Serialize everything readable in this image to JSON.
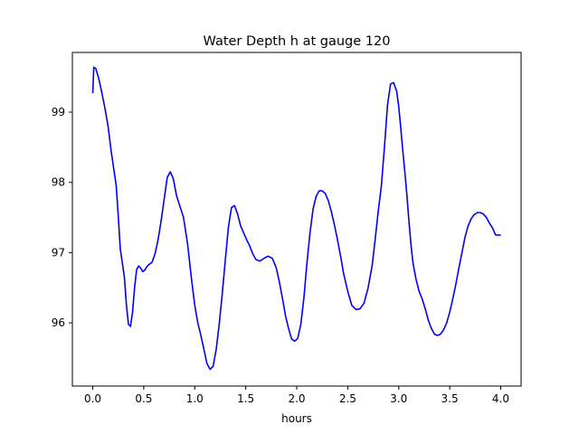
{
  "chart_data": {
    "type": "line",
    "title": "Water Depth h at gauge 120",
    "xlabel": "hours",
    "ylabel": "",
    "xlim": [
      -0.2,
      4.2
    ],
    "ylim": [
      95.1,
      99.85
    ],
    "xticks": [
      0.0,
      0.5,
      1.0,
      1.5,
      2.0,
      2.5,
      3.0,
      3.5,
      4.0
    ],
    "xtick_labels": [
      "0.0",
      "0.5",
      "1.0",
      "1.5",
      "2.0",
      "2.5",
      "3.0",
      "3.5",
      "4.0"
    ],
    "yticks": [
      96,
      97,
      98,
      99
    ],
    "ytick_labels": [
      "96",
      "97",
      "98",
      "99"
    ],
    "grid": false,
    "series": [
      {
        "color": "#0000ff",
        "x": [
          0.0,
          0.01,
          0.03,
          0.06,
          0.09,
          0.12,
          0.15,
          0.18,
          0.2,
          0.23,
          0.25,
          0.27,
          0.29,
          0.31,
          0.33,
          0.35,
          0.37,
          0.39,
          0.41,
          0.43,
          0.45,
          0.47,
          0.49,
          0.51,
          0.53,
          0.55,
          0.58,
          0.61,
          0.64,
          0.67,
          0.7,
          0.73,
          0.76,
          0.79,
          0.82,
          0.85,
          0.89,
          0.93,
          0.97,
          1.0,
          1.03,
          1.06,
          1.09,
          1.12,
          1.15,
          1.18,
          1.21,
          1.24,
          1.27,
          1.3,
          1.33,
          1.36,
          1.39,
          1.42,
          1.45,
          1.48,
          1.51,
          1.54,
          1.57,
          1.6,
          1.64,
          1.68,
          1.72,
          1.76,
          1.8,
          1.83,
          1.86,
          1.89,
          1.92,
          1.95,
          1.98,
          2.01,
          2.04,
          2.07,
          2.1,
          2.13,
          2.16,
          2.19,
          2.22,
          2.25,
          2.28,
          2.31,
          2.34,
          2.37,
          2.4,
          2.43,
          2.46,
          2.5,
          2.54,
          2.58,
          2.62,
          2.66,
          2.7,
          2.74,
          2.77,
          2.8,
          2.83,
          2.86,
          2.89,
          2.92,
          2.95,
          2.98,
          3.0,
          3.02,
          3.04,
          3.06,
          3.08,
          3.1,
          3.12,
          3.14,
          3.17,
          3.2,
          3.23,
          3.26,
          3.29,
          3.32,
          3.35,
          3.38,
          3.41,
          3.44,
          3.47,
          3.5,
          3.53,
          3.56,
          3.59,
          3.62,
          3.65,
          3.68,
          3.71,
          3.74,
          3.77,
          3.8,
          3.83,
          3.86,
          3.89,
          3.92,
          3.95,
          3.97,
          3.99,
          4.0
        ],
        "y": [
          99.27,
          99.64,
          99.62,
          99.47,
          99.27,
          99.05,
          98.8,
          98.45,
          98.25,
          97.95,
          97.52,
          97.05,
          96.85,
          96.65,
          96.25,
          95.98,
          95.95,
          96.15,
          96.5,
          96.76,
          96.81,
          96.78,
          96.73,
          96.75,
          96.8,
          96.83,
          96.86,
          96.98,
          97.18,
          97.45,
          97.76,
          98.07,
          98.15,
          98.05,
          97.82,
          97.68,
          97.5,
          97.12,
          96.6,
          96.25,
          96.0,
          95.82,
          95.62,
          95.42,
          95.34,
          95.38,
          95.62,
          95.98,
          96.42,
          96.9,
          97.36,
          97.64,
          97.67,
          97.55,
          97.38,
          97.28,
          97.18,
          97.09,
          96.98,
          96.9,
          96.88,
          96.92,
          96.95,
          96.92,
          96.78,
          96.58,
          96.35,
          96.1,
          95.92,
          95.77,
          95.74,
          95.78,
          95.98,
          96.35,
          96.85,
          97.28,
          97.62,
          97.8,
          97.88,
          97.88,
          97.84,
          97.74,
          97.58,
          97.39,
          97.18,
          96.95,
          96.7,
          96.45,
          96.25,
          96.19,
          96.2,
          96.28,
          96.5,
          96.82,
          97.2,
          97.6,
          97.95,
          98.5,
          99.1,
          99.4,
          99.42,
          99.3,
          99.08,
          98.78,
          98.45,
          98.15,
          97.82,
          97.45,
          97.12,
          96.85,
          96.62,
          96.45,
          96.34,
          96.2,
          96.04,
          95.92,
          95.84,
          95.82,
          95.84,
          95.9,
          96.0,
          96.15,
          96.34,
          96.55,
          96.78,
          97.0,
          97.22,
          97.38,
          97.48,
          97.54,
          97.57,
          97.57,
          97.55,
          97.5,
          97.42,
          97.35,
          97.25,
          97.25,
          97.25,
          97.25
        ]
      }
    ]
  }
}
